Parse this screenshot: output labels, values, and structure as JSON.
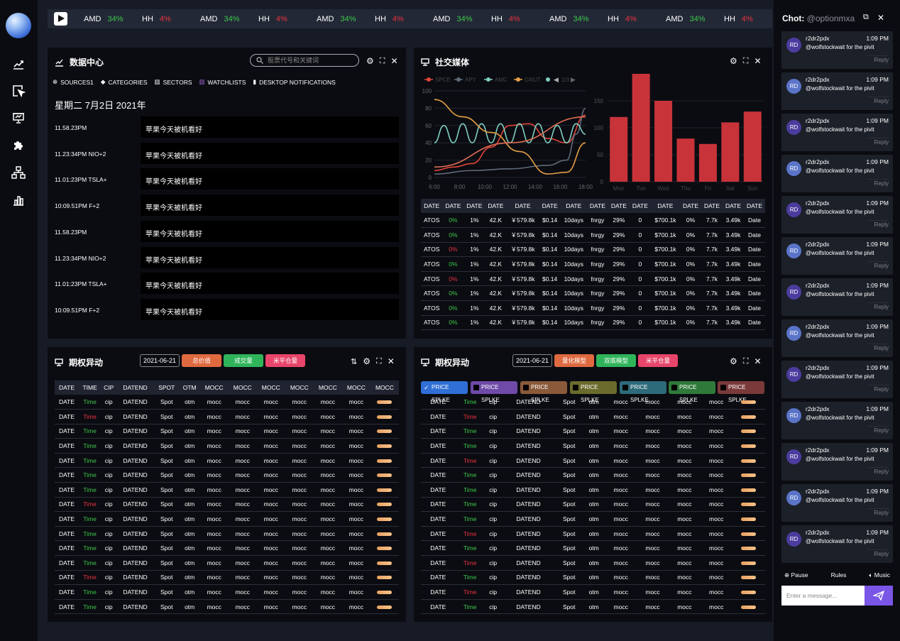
{
  "ticker": [
    {
      "sym": "AMD",
      "val": "34%",
      "up": true
    },
    {
      "sym": "HH",
      "val": "4%",
      "up": false
    },
    {
      "sym": "AMD",
      "val": "34%",
      "up": true
    },
    {
      "sym": "HH",
      "val": "4%",
      "up": false
    },
    {
      "sym": "AMD",
      "val": "34%",
      "up": true
    },
    {
      "sym": "HH",
      "val": "4%",
      "up": false
    },
    {
      "sym": "AMD",
      "val": "34%",
      "up": true
    },
    {
      "sym": "HH",
      "val": "4%",
      "up": false
    },
    {
      "sym": "AMD",
      "val": "34%",
      "up": true
    },
    {
      "sym": "HH",
      "val": "4%",
      "up": false
    },
    {
      "sym": "AMD",
      "val": "34%",
      "up": true
    },
    {
      "sym": "HH",
      "val": "4%",
      "up": false
    }
  ],
  "data_center": {
    "title": "数据中心",
    "search_placeholder": "股票代号和关键词",
    "tabs": [
      "SOURCES1",
      "CATEGORIES",
      "SECTORS",
      "WATCHLISTS",
      "DESKTOP NOTIFICATIONS"
    ],
    "date": "星期二 7月2日 2021年",
    "news": [
      {
        "time": "11.58.23PM",
        "text": "苹果今天被机看好"
      },
      {
        "time": "11.23:34PM NIO+2",
        "text": "苹果今天被机看好"
      },
      {
        "time": "11.01:23PM TSLA+",
        "text": "苹果今天被机看好"
      },
      {
        "time": "10:09.51PM F+2",
        "text": "苹果今天被机看好"
      },
      {
        "time": "11.58.23PM",
        "text": "苹果今天被机看好"
      },
      {
        "time": "11.23:34PM NIO+2",
        "text": "苹果今天被机看好"
      },
      {
        "time": "11.01:23PM TSLA+",
        "text": "苹果今天被机看好"
      },
      {
        "time": "10:09.51PM F+2",
        "text": "苹果今天被机看好"
      }
    ]
  },
  "social": {
    "title": "社交媒体",
    "headers": [
      "DATE",
      "DATE",
      "DATE",
      "DATE",
      "DATE",
      "DATE",
      "DATE",
      "DATE",
      "DATE",
      "DATE",
      "DATE",
      "DATE",
      "DATE",
      "DATE",
      "DATE"
    ],
    "rows": [
      {
        "pct": "0%",
        "up": true
      },
      {
        "pct": "0%",
        "up": true
      },
      {
        "pct": "0%",
        "up": false
      },
      {
        "pct": "0%",
        "up": true
      },
      {
        "pct": "0%",
        "up": false
      },
      {
        "pct": "0%",
        "up": true
      },
      {
        "pct": "0%",
        "up": true
      },
      {
        "pct": "0%",
        "up": true
      }
    ],
    "row_cells": [
      "ATOS",
      "",
      "1%",
      "42.K",
      "￥579.8k",
      "$0.14",
      "10days",
      "fnrgy",
      "29%",
      "0",
      "$700.1k",
      "0%",
      "7.7k",
      "3.49k",
      "Date"
    ]
  },
  "chart_data": [
    {
      "type": "line",
      "legend": [
        "SPCE",
        "APY",
        "AMC",
        "GNUT"
      ],
      "legend_colors": [
        "#e0453a",
        "#5f6b7a",
        "#7ecfc0",
        "#e8a046"
      ],
      "legend_page": "1/3",
      "x": [
        "6:00",
        "8:00",
        "10:00",
        "12:00",
        "14:00",
        "16:00",
        "18:00"
      ],
      "ylim": [
        0,
        100
      ],
      "yticks": [
        0,
        20,
        40,
        60,
        80,
        100
      ],
      "series": [
        {
          "name": "SPCE",
          "color": "#e0453a",
          "values": [
            [
              0,
              8
            ],
            [
              2,
              12
            ],
            [
              4,
              16
            ],
            [
              6,
              35
            ],
            [
              8,
              60
            ],
            [
              10,
              62
            ],
            [
              12,
              45
            ],
            [
              14,
              40
            ],
            [
              16,
              72
            ]
          ]
        },
        {
          "name": "APY",
          "color": "#5f6b7a",
          "values": [
            [
              0,
              4
            ],
            [
              4,
              8
            ],
            [
              8,
              10
            ],
            [
              12,
              14
            ],
            [
              14,
              20
            ],
            [
              15,
              50
            ],
            [
              16,
              80
            ]
          ]
        },
        {
          "name": "AMC",
          "color": "#7ecfc0",
          "values": [
            [
              0,
              40
            ],
            [
              1,
              60
            ],
            [
              2,
              40
            ],
            [
              3,
              62
            ],
            [
              4,
              40
            ],
            [
              5,
              62
            ],
            [
              6,
              40
            ],
            [
              7,
              62
            ],
            [
              8,
              40
            ],
            [
              9,
              62
            ],
            [
              10,
              40
            ],
            [
              11,
              62
            ],
            [
              12,
              40
            ],
            [
              13,
              60
            ],
            [
              14,
              40
            ],
            [
              15,
              62
            ],
            [
              16,
              50
            ]
          ]
        },
        {
          "name": "GNUT",
          "color": "#e8a046",
          "values": [
            [
              0,
              90
            ],
            [
              3,
              70
            ],
            [
              6,
              52
            ],
            [
              9,
              30
            ],
            [
              12,
              4
            ],
            [
              14,
              6
            ],
            [
              16,
              40
            ]
          ]
        },
        {
          "name": "trend",
          "color": "#e26e55",
          "values": [
            [
              0,
              12
            ],
            [
              8,
              40
            ],
            [
              16,
              70
            ]
          ]
        }
      ]
    },
    {
      "type": "bar",
      "categories": [
        "Mon",
        "Tue",
        "Wed",
        "Thu",
        "Fri",
        "Sat",
        "Sun"
      ],
      "values": [
        120,
        200,
        150,
        80,
        70,
        110,
        130
      ],
      "ylim": [
        0,
        200
      ],
      "yticks": [
        0,
        50,
        100,
        150
      ]
    }
  ],
  "options_left": {
    "title": "期权异动",
    "date": "2021-06-21",
    "buttons": [
      "总价值",
      "成交量",
      "米平仓量"
    ],
    "headers": [
      "DATE",
      "TIME",
      "CIP",
      "DATEND",
      "SPOT",
      "OTM",
      "MOCC",
      "MOCC",
      "MOCC",
      "MOCC",
      "MOCC",
      "MOCC",
      "MOCC"
    ],
    "cells": [
      "DATE",
      "Time",
      "cip",
      "DATEND",
      "Spot",
      "otm",
      "mocc",
      "mocc",
      "mocc",
      "mocc",
      "mocc",
      "mocc"
    ],
    "time_up": [
      true,
      false,
      true,
      true,
      true,
      true,
      true,
      false,
      true,
      true,
      true,
      true,
      false,
      true,
      true
    ]
  },
  "options_right": {
    "title": "期权异动",
    "date": "2021-06-21",
    "buttons": [
      "量化模型",
      "双底模型",
      "米平仓量"
    ],
    "chips": [
      {
        "label": "PRICE SPLKE",
        "color": "#2f6fd6",
        "on": true
      },
      {
        "label": "PRICE SPLKE",
        "color": "#6f4aa8",
        "on": false
      },
      {
        "label": "PRICE SPLKE",
        "color": "#8a5a3a",
        "on": false
      },
      {
        "label": "PRICE SPLKE",
        "color": "#6b6b2d",
        "on": false
      },
      {
        "label": "PRICE SPLKE",
        "color": "#2e6b7a",
        "on": false
      },
      {
        "label": "PRICE SPLKE",
        "color": "#2f7a3a",
        "on": false
      },
      {
        "label": "PRICE SPLKE",
        "color": "#7a3a3a",
        "on": false
      }
    ],
    "cells": [
      "DATE",
      "Time",
      "cip",
      "DATEND",
      "Spot",
      "otm",
      "mocc",
      "mocc",
      "mocc",
      "mocc"
    ],
    "time_up": [
      true,
      false,
      true,
      true,
      false,
      true,
      true,
      true,
      true,
      false,
      true,
      false,
      true,
      false,
      true
    ]
  },
  "chat": {
    "title": "Chot:",
    "user": "@optionmxa",
    "messages": [
      {
        "av": "RD",
        "name": "r2dr2pdx",
        "time": "1:09 PM",
        "text": "@wolfstockwait for the pivit",
        "reply": "Reply"
      },
      {
        "av": "RD",
        "name": "r2dr2pdx",
        "time": "1:09 PM",
        "text": "@wolfstockwait for the pivit",
        "reply": "Reply"
      },
      {
        "av": "RD",
        "name": "r2dr2pdx",
        "time": "1:09 PM",
        "text": "@wolfstockwait for the pivit",
        "reply": "Reply"
      },
      {
        "av": "RD",
        "name": "r2dr2pdx",
        "time": "1:09 PM",
        "text": "@wolfstockwait for the pivit",
        "reply": "Reply"
      },
      {
        "av": "RD",
        "name": "r2dr2pdx",
        "time": "1:09 PM",
        "text": "@wolfstockwait for the pivit",
        "reply": "Reply"
      },
      {
        "av": "RD",
        "name": "r2dr2pdx",
        "time": "1:09 PM",
        "text": "@wolfstockwait for the pivit",
        "reply": "Reply"
      },
      {
        "av": "RD",
        "name": "r2dr2pdx",
        "time": "1:09 PM",
        "text": "@wolfstockwait for the pivit",
        "reply": "Reply"
      },
      {
        "av": "RD",
        "name": "r2dr2pdx",
        "time": "1:09 PM",
        "text": "@wolfstockwait for the pivit",
        "reply": "Reply"
      },
      {
        "av": "RD",
        "name": "r2dr2pdx",
        "time": "1:09 PM",
        "text": "@wolfstockwait for the pivit",
        "reply": "Reply"
      },
      {
        "av": "RD",
        "name": "r2dr2pdx",
        "time": "1:09 PM",
        "text": "@wolfstockwait for the pivit",
        "reply": "Reply"
      },
      {
        "av": "RD",
        "name": "r2dr2pdx",
        "time": "1:09 PM",
        "text": "@wolfstockwait for the pivit",
        "reply": "Reply"
      },
      {
        "av": "RD",
        "name": "r2dr2pdx",
        "time": "1:09 PM",
        "text": "@wolfstockwait for the pivit",
        "reply": "Reply"
      },
      {
        "av": "RD",
        "name": "r2dr2pdx",
        "time": "1:09 PM",
        "text": "@wolfstockwait for the pivit",
        "reply": "Reply"
      }
    ],
    "footer": [
      "Pause",
      "Rules",
      "Music"
    ],
    "input_placeholder": "Enter a message..."
  }
}
